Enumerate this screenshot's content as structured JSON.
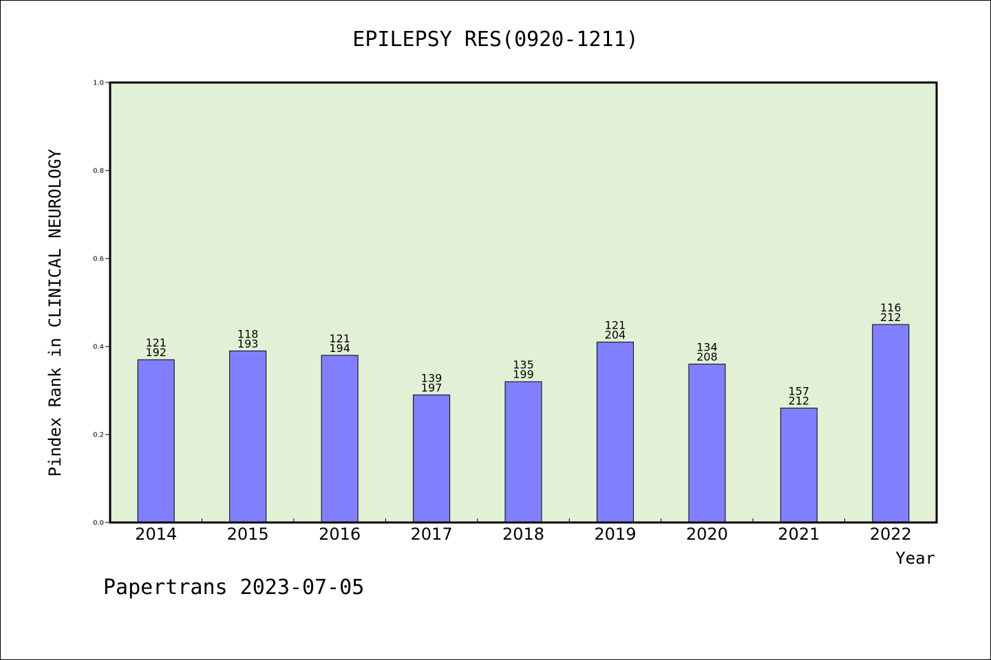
{
  "chart_data": {
    "type": "bar",
    "title": "EPILEPSY RES(0920-1211)",
    "xlabel": "Year",
    "ylabel": "Pindex Rank in CLINICAL NEUROLOGY",
    "categories": [
      "2014",
      "2015",
      "2016",
      "2017",
      "2018",
      "2019",
      "2020",
      "2021",
      "2022"
    ],
    "values": [
      0.37,
      0.39,
      0.38,
      0.29,
      0.32,
      0.41,
      0.36,
      0.26,
      0.45
    ],
    "label_top": [
      "121",
      "118",
      "121",
      "139",
      "135",
      "121",
      "134",
      "157",
      "116"
    ],
    "label_bottom": [
      "192",
      "193",
      "194",
      "197",
      "199",
      "204",
      "208",
      "212",
      "212"
    ],
    "ylim": [
      0,
      1.0
    ],
    "yticks": [
      "0.0",
      "0.2",
      "0.4",
      "0.6",
      "0.8",
      "1.0"
    ],
    "ytick_values": [
      0,
      0.2,
      0.4,
      0.6,
      0.8,
      1.0
    ],
    "grid": false,
    "colors": {
      "plot_background": "#e2f0d6",
      "bar_fill": "#8080ff",
      "bar_stroke": "#000000"
    }
  },
  "footer": {
    "text": "Papertrans 2023-07-05"
  }
}
